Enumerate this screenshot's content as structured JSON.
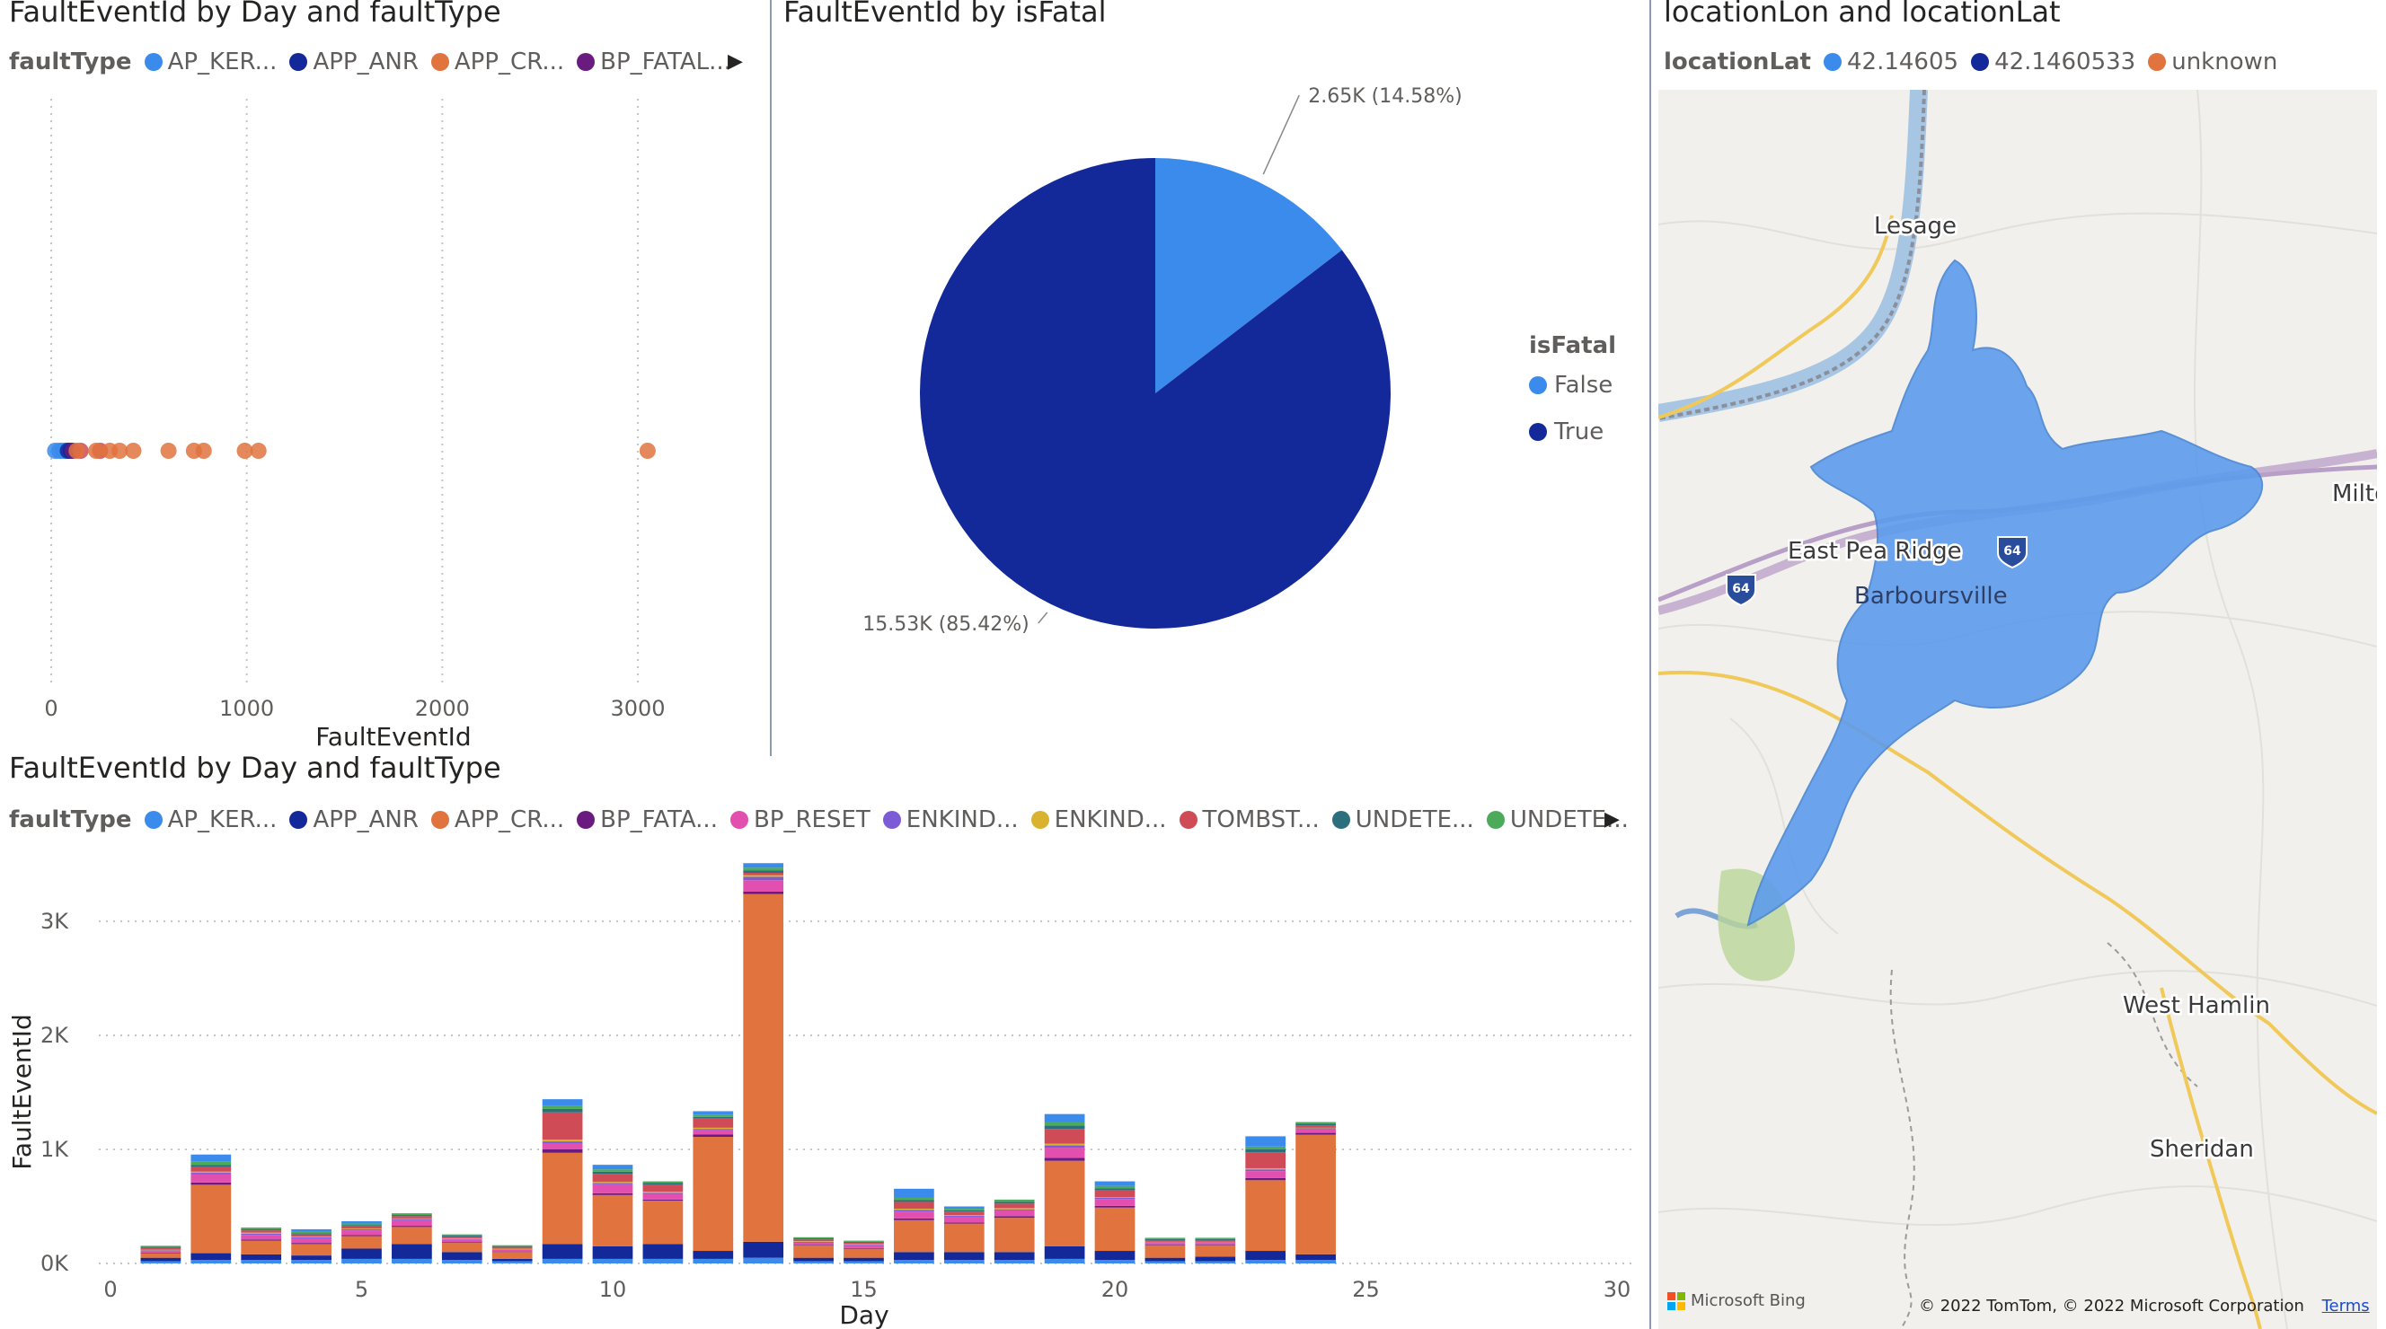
{
  "scatter_panel": {
    "title": "FaultEventId by Day and faultType",
    "legend_title": "faultType",
    "legend": [
      {
        "label": "AP_KER...",
        "color": "#3b8bec"
      },
      {
        "label": "APP_ANR",
        "color": "#13299a"
      },
      {
        "label": "APP_CR...",
        "color": "#e0733e"
      },
      {
        "label": "BP_FATAL...",
        "color": "#6a1b7f"
      }
    ],
    "legend_more_icon": "triangle-right-icon"
  },
  "pie_panel": {
    "title": "FaultEventId by isFatal",
    "legend_title": "isFatal",
    "legend": [
      {
        "label": "False",
        "color": "#3b8bec"
      },
      {
        "label": "True",
        "color": "#13299a"
      }
    ]
  },
  "map_panel": {
    "title": "locationLon and locationLat",
    "legend_title": "locationLat",
    "legend": [
      {
        "label": "42.14605",
        "color": "#3b8bec"
      },
      {
        "label": "42.1460533",
        "color": "#13299a"
      },
      {
        "label": "unknown",
        "color": "#e0733e"
      }
    ],
    "places": [
      "Lesage",
      "East Pea Ridge",
      "Barboursville",
      "Milto",
      "West Hamlin",
      "Sheridan"
    ],
    "shields": [
      "64",
      "64"
    ],
    "bing_label": "Microsoft Bing",
    "copyright": "© 2022 TomTom, © 2022 Microsoft Corporation",
    "terms": "Terms"
  },
  "bar_panel": {
    "title": "FaultEventId by Day and faultType",
    "legend_title": "faultType",
    "legend": [
      {
        "label": "AP_KER...",
        "color": "#3b8bec"
      },
      {
        "label": "APP_ANR",
        "color": "#13299a"
      },
      {
        "label": "APP_CR...",
        "color": "#e0733e"
      },
      {
        "label": "BP_FATA...",
        "color": "#6a1b7f"
      },
      {
        "label": "BP_RESET",
        "color": "#e34fae"
      },
      {
        "label": "ENKIND...",
        "color": "#7c5cd6"
      },
      {
        "label": "ENKIND...",
        "color": "#d9b32f"
      },
      {
        "label": "TOMBST...",
        "color": "#cf4b55"
      },
      {
        "label": "UNDETE...",
        "color": "#2b6f7d"
      },
      {
        "label": "UNDETE...",
        "color": "#4cab5a"
      }
    ],
    "legend_more_icon": "triangle-right-icon"
  },
  "chart_data": [
    {
      "type": "scatter",
      "title": "FaultEventId by Day and faultType",
      "xlabel": "FaultEventId",
      "ylabel": "",
      "xlim": [
        0,
        3500
      ],
      "xticks": [
        "0",
        "1000",
        "2000",
        "3000"
      ],
      "series": [
        {
          "name": "AP_KER...",
          "color": "#3b8bec",
          "x": [
            20,
            40,
            55,
            70,
            90
          ]
        },
        {
          "name": "APP_ANR",
          "color": "#13299a",
          "x": [
            85,
            100
          ]
        },
        {
          "name": "BP_FATAL...",
          "color": "#6a1b7f",
          "x": [
            110
          ]
        },
        {
          "name": "TOMBST...",
          "color": "#cf4b55",
          "x": [
            150,
            250
          ]
        },
        {
          "name": "APP_CR...",
          "color": "#e0733e",
          "x": [
            130,
            230,
            300,
            350,
            420,
            600,
            730,
            780,
            990,
            1060,
            3050
          ]
        }
      ]
    },
    {
      "type": "pie",
      "title": "FaultEventId by isFatal",
      "slices": [
        {
          "name": "False",
          "value": 2650,
          "percent": 14.58,
          "label": "2.65K (14.58%)",
          "color": "#3b8bec"
        },
        {
          "name": "True",
          "value": 15530,
          "percent": 85.42,
          "label": "15.53K (85.42%)",
          "color": "#13299a"
        }
      ]
    },
    {
      "type": "bar",
      "title": "FaultEventId by Day and faultType",
      "xlabel": "Day",
      "ylabel": "FaultEventId",
      "xlim": [
        0,
        30
      ],
      "ylim": [
        0,
        3500
      ],
      "xticks": [
        "0",
        "5",
        "10",
        "15",
        "20",
        "25",
        "30"
      ],
      "yticks": [
        "0K",
        "1K",
        "2K",
        "3K"
      ],
      "categories": [
        1,
        2,
        3,
        4,
        5,
        6,
        7,
        8,
        9,
        10,
        11,
        12,
        13,
        14,
        15,
        16,
        17,
        18,
        19,
        20,
        21,
        22,
        23,
        24
      ],
      "series": [
        {
          "name": "AP_KER...",
          "color": "#3b8bec",
          "values": [
            20,
            30,
            30,
            30,
            40,
            40,
            30,
            20,
            40,
            40,
            40,
            40,
            50,
            20,
            20,
            30,
            30,
            30,
            40,
            30,
            20,
            20,
            30,
            30
          ]
        },
        {
          "name": "APP_ANR",
          "color": "#13299a",
          "values": [
            30,
            60,
            50,
            40,
            90,
            130,
            70,
            20,
            130,
            110,
            130,
            70,
            140,
            30,
            30,
            70,
            70,
            70,
            110,
            80,
            30,
            40,
            80,
            50
          ]
        },
        {
          "name": "APP_CR...",
          "color": "#e0733e",
          "values": [
            40,
            600,
            120,
            100,
            110,
            150,
            80,
            60,
            800,
            450,
            380,
            1000,
            3050,
            110,
            80,
            280,
            250,
            300,
            750,
            380,
            110,
            100,
            620,
            1050
          ]
        },
        {
          "name": "BP_FATA...",
          "color": "#6a1b7f",
          "values": [
            5,
            20,
            10,
            10,
            10,
            10,
            5,
            5,
            30,
            15,
            10,
            20,
            20,
            5,
            5,
            15,
            10,
            15,
            25,
            15,
            5,
            5,
            20,
            15
          ]
        },
        {
          "name": "BP_RESET",
          "color": "#e34fae",
          "values": [
            15,
            70,
            40,
            40,
            40,
            50,
            25,
            15,
            50,
            80,
            50,
            40,
            100,
            20,
            25,
            60,
            50,
            50,
            90,
            60,
            15,
            15,
            60,
            30
          ]
        },
        {
          "name": "ENKIND...",
          "color": "#7c5cd6",
          "values": [
            5,
            15,
            10,
            10,
            10,
            10,
            5,
            5,
            20,
            10,
            10,
            10,
            30,
            5,
            5,
            15,
            10,
            10,
            20,
            10,
            5,
            5,
            15,
            10
          ]
        },
        {
          "name": "ENKIND...",
          "color": "#d9b32f",
          "values": [
            5,
            10,
            10,
            5,
            5,
            5,
            5,
            5,
            15,
            10,
            10,
            10,
            15,
            5,
            5,
            10,
            5,
            10,
            15,
            5,
            5,
            5,
            10,
            5
          ]
        },
        {
          "name": "TOMBST...",
          "color": "#cf4b55",
          "values": [
            15,
            40,
            20,
            20,
            20,
            20,
            15,
            15,
            240,
            70,
            60,
            80,
            20,
            15,
            15,
            60,
            30,
            40,
            130,
            60,
            15,
            15,
            140,
            20
          ]
        },
        {
          "name": "UNDETE...",
          "color": "#2b6f7d",
          "values": [
            10,
            20,
            10,
            10,
            10,
            10,
            10,
            5,
            30,
            20,
            15,
            15,
            20,
            10,
            5,
            15,
            10,
            15,
            30,
            20,
            10,
            10,
            25,
            15
          ]
        },
        {
          "name": "UNDETE...",
          "color": "#4cab5a",
          "values": [
            10,
            30,
            15,
            15,
            15,
            15,
            10,
            10,
            25,
            20,
            15,
            20,
            25,
            10,
            10,
            20,
            15,
            20,
            30,
            20,
            10,
            10,
            25,
            15
          ]
        },
        {
          "name": "AP_KER... (top)",
          "color": "#3b8bec",
          "values": [
            0,
            60,
            0,
            20,
            20,
            0,
            0,
            0,
            60,
            40,
            0,
            30,
            40,
            0,
            0,
            80,
            20,
            0,
            70,
            40,
            0,
            0,
            90,
            0
          ]
        }
      ]
    }
  ]
}
